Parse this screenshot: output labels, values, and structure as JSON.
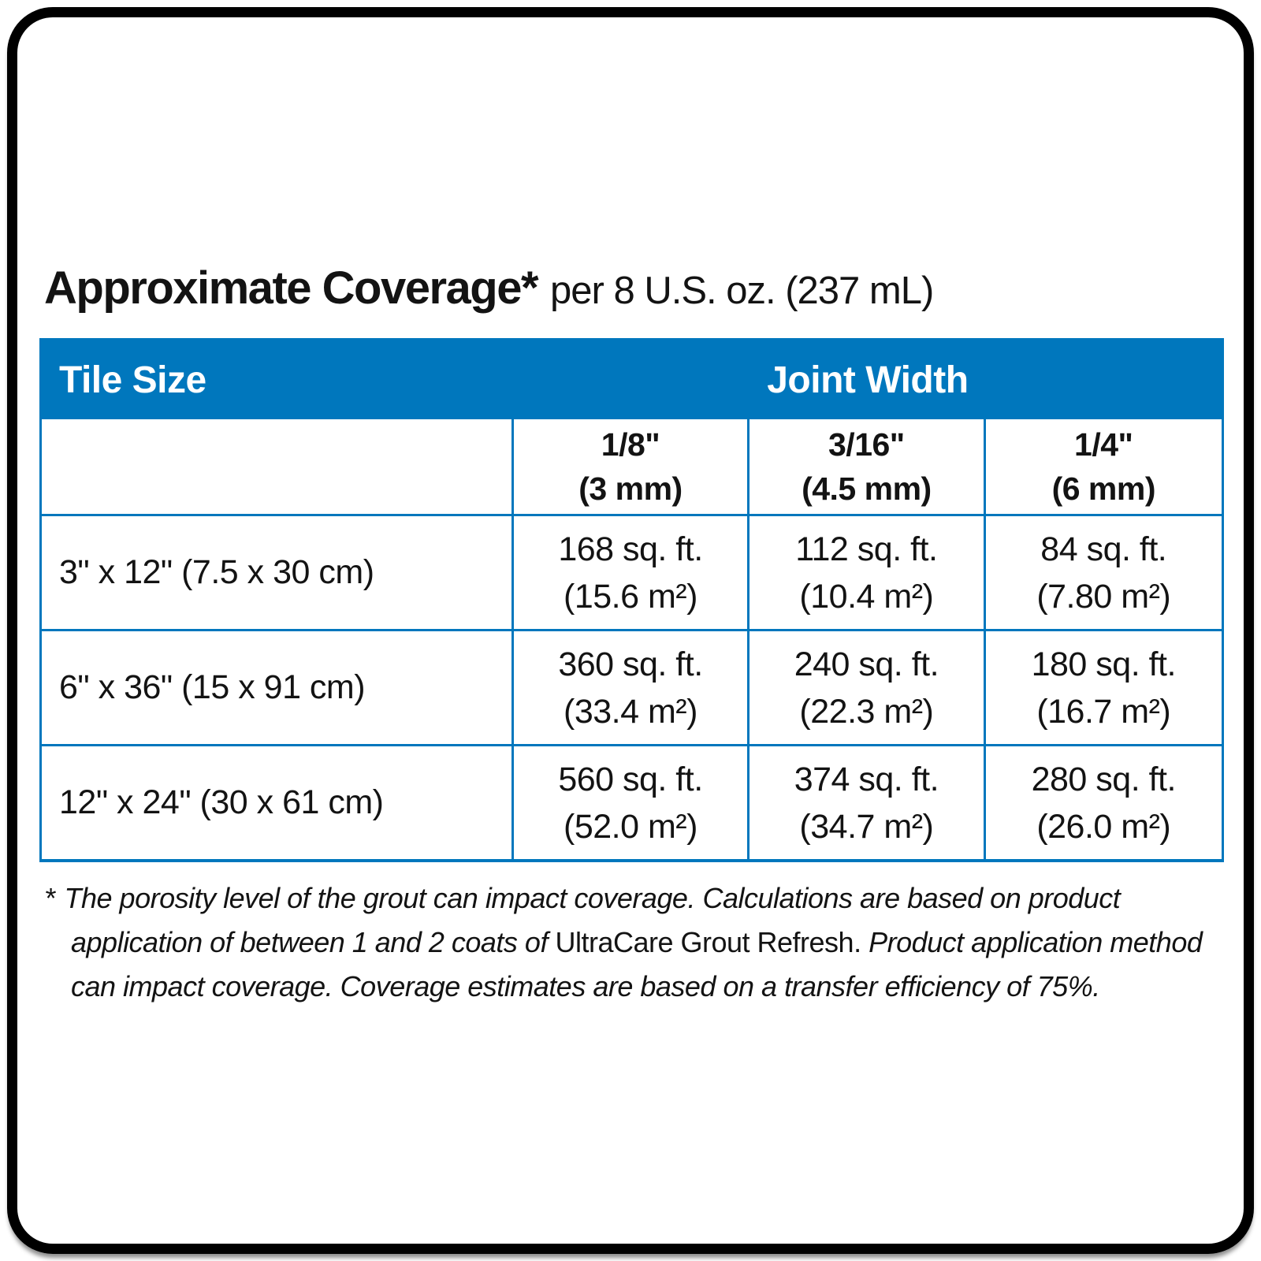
{
  "header": {
    "title": "Approximate Coverage*",
    "subtitle": "per 8 U.S. oz. (237 mL)"
  },
  "colors": {
    "brand_blue": "#0077bd",
    "header_text": "#ffffff",
    "body_text": "#131313",
    "frame_border": "#000000"
  },
  "table": {
    "col_tile_size": "Tile Size",
    "col_joint_width": "Joint Width",
    "joint_widths": [
      {
        "inches": "1/8\"",
        "mm": "(3 mm)"
      },
      {
        "inches": "3/16\"",
        "mm": "(4.5 mm)"
      },
      {
        "inches": "1/4\"",
        "mm": "(6 mm)"
      }
    ],
    "rows": [
      {
        "tile_size": "3\" x 12\" (7.5 x 30 cm)",
        "cells": [
          {
            "sqft": "168 sq. ft.",
            "m2": "(15.6 m²)"
          },
          {
            "sqft": "112 sq. ft.",
            "m2": "(10.4 m²)"
          },
          {
            "sqft": "84 sq. ft.",
            "m2": "(7.80 m²)"
          }
        ]
      },
      {
        "tile_size": "6\" x 36\" (15 x 91 cm)",
        "cells": [
          {
            "sqft": "360 sq. ft.",
            "m2": "(33.4 m²)"
          },
          {
            "sqft": "240 sq. ft.",
            "m2": "(22.3 m²)"
          },
          {
            "sqft": "180 sq. ft.",
            "m2": "(16.7 m²)"
          }
        ]
      },
      {
        "tile_size": "12\" x 24\" (30 x 61 cm)",
        "cells": [
          {
            "sqft": "560 sq. ft.",
            "m2": "(52.0 m²)"
          },
          {
            "sqft": "374 sq. ft.",
            "m2": "(34.7 m²)"
          },
          {
            "sqft": "280 sq. ft.",
            "m2": "(26.0 m²)"
          }
        ]
      }
    ]
  },
  "footnote": {
    "marker": "*",
    "part1": "The porosity level of the grout can impact coverage. Calculations are based on product application of between 1 and 2 coats of ",
    "product": "UltraCare Grout Refresh.",
    "part2": " Product application method can impact coverage. Coverage estimates are based on a transfer efficiency of 75%."
  }
}
